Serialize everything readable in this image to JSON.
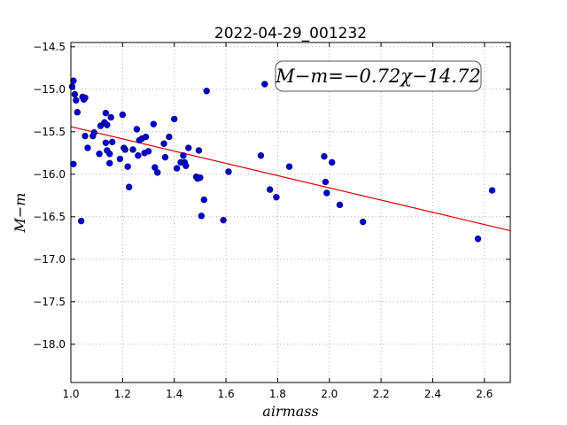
{
  "chart_data": {
    "type": "scatter",
    "title": "2022-04-29_001232",
    "xlabel": "airmass",
    "ylabel": "M−m",
    "xlim": [
      1.0,
      2.7
    ],
    "ylim": [
      -18.45,
      -14.45
    ],
    "y_inverted": true,
    "grid": true,
    "x_ticks": [
      1.0,
      1.2,
      1.4,
      1.6,
      1.8,
      2.0,
      2.2,
      2.4,
      2.6
    ],
    "x_tick_labels": [
      "1.0",
      "1.2",
      "1.4",
      "1.6",
      "1.8",
      "2.0",
      "2.2",
      "2.4",
      "2.6"
    ],
    "y_ticks": [
      -14.5,
      -15.0,
      -15.5,
      -16.0,
      -16.5,
      -17.0,
      -17.5,
      -18.0
    ],
    "y_tick_labels": [
      "−14.5",
      "−15.0",
      "−15.5",
      "−16.0",
      "−16.5",
      "−17.0",
      "−17.5",
      "−18.0"
    ],
    "annotation": "M−m=−0.72χ−14.72",
    "fit": {
      "slope": -0.72,
      "intercept": -14.72
    },
    "colors": {
      "points": "#0000cc",
      "fit_line": "#dd0000",
      "grid": "#b0b0b0"
    },
    "points": [
      {
        "x": 1.005,
        "y": -14.97
      },
      {
        "x": 1.01,
        "y": -14.9
      },
      {
        "x": 1.015,
        "y": -15.06
      },
      {
        "x": 1.02,
        "y": -15.13
      },
      {
        "x": 1.025,
        "y": -15.27
      },
      {
        "x": 1.01,
        "y": -15.88
      },
      {
        "x": 1.045,
        "y": -15.09
      },
      {
        "x": 1.05,
        "y": -15.12
      },
      {
        "x": 1.055,
        "y": -15.1
      },
      {
        "x": 1.04,
        "y": -16.55
      },
      {
        "x": 1.055,
        "y": -15.55
      },
      {
        "x": 1.065,
        "y": -15.69
      },
      {
        "x": 1.085,
        "y": -15.55
      },
      {
        "x": 1.09,
        "y": -15.51
      },
      {
        "x": 1.11,
        "y": -15.76
      },
      {
        "x": 1.115,
        "y": -15.43
      },
      {
        "x": 1.13,
        "y": -15.39
      },
      {
        "x": 1.135,
        "y": -15.28
      },
      {
        "x": 1.14,
        "y": -15.42
      },
      {
        "x": 1.135,
        "y": -15.63
      },
      {
        "x": 1.14,
        "y": -15.72
      },
      {
        "x": 1.15,
        "y": -15.76
      },
      {
        "x": 1.15,
        "y": -15.87
      },
      {
        "x": 1.16,
        "y": -15.62
      },
      {
        "x": 1.155,
        "y": -15.33
      },
      {
        "x": 1.19,
        "y": -15.82
      },
      {
        "x": 1.2,
        "y": -15.3
      },
      {
        "x": 1.205,
        "y": -15.69
      },
      {
        "x": 1.21,
        "y": -15.71
      },
      {
        "x": 1.225,
        "y": -16.15
      },
      {
        "x": 1.22,
        "y": -15.91
      },
      {
        "x": 1.24,
        "y": -15.71
      },
      {
        "x": 1.255,
        "y": -15.47
      },
      {
        "x": 1.26,
        "y": -15.78
      },
      {
        "x": 1.265,
        "y": -15.6
      },
      {
        "x": 1.275,
        "y": -15.58
      },
      {
        "x": 1.285,
        "y": -15.75
      },
      {
        "x": 1.29,
        "y": -15.56
      },
      {
        "x": 1.3,
        "y": -15.73
      },
      {
        "x": 1.32,
        "y": -15.41
      },
      {
        "x": 1.325,
        "y": -15.92
      },
      {
        "x": 1.335,
        "y": -15.98
      },
      {
        "x": 1.36,
        "y": -15.64
      },
      {
        "x": 1.365,
        "y": -15.8
      },
      {
        "x": 1.38,
        "y": -15.56
      },
      {
        "x": 1.4,
        "y": -15.35
      },
      {
        "x": 1.41,
        "y": -15.93
      },
      {
        "x": 1.425,
        "y": -15.86
      },
      {
        "x": 1.435,
        "y": -15.78
      },
      {
        "x": 1.44,
        "y": -15.86
      },
      {
        "x": 1.445,
        "y": -15.9
      },
      {
        "x": 1.455,
        "y": -15.69
      },
      {
        "x": 1.485,
        "y": -16.03
      },
      {
        "x": 1.49,
        "y": -16.05
      },
      {
        "x": 1.495,
        "y": -15.72
      },
      {
        "x": 1.5,
        "y": -16.04
      },
      {
        "x": 1.505,
        "y": -16.49
      },
      {
        "x": 1.515,
        "y": -16.3
      },
      {
        "x": 1.525,
        "y": -15.02
      },
      {
        "x": 1.59,
        "y": -16.54
      },
      {
        "x": 1.61,
        "y": -15.97
      },
      {
        "x": 1.735,
        "y": -15.78
      },
      {
        "x": 1.75,
        "y": -14.94
      },
      {
        "x": 1.77,
        "y": -16.18
      },
      {
        "x": 1.795,
        "y": -16.27
      },
      {
        "x": 1.845,
        "y": -15.91
      },
      {
        "x": 1.98,
        "y": -15.79
      },
      {
        "x": 1.985,
        "y": -16.09
      },
      {
        "x": 1.99,
        "y": -16.22
      },
      {
        "x": 2.01,
        "y": -15.86
      },
      {
        "x": 2.04,
        "y": -16.36
      },
      {
        "x": 2.13,
        "y": -16.56
      },
      {
        "x": 2.575,
        "y": -16.76
      },
      {
        "x": 2.63,
        "y": -16.19
      }
    ]
  }
}
